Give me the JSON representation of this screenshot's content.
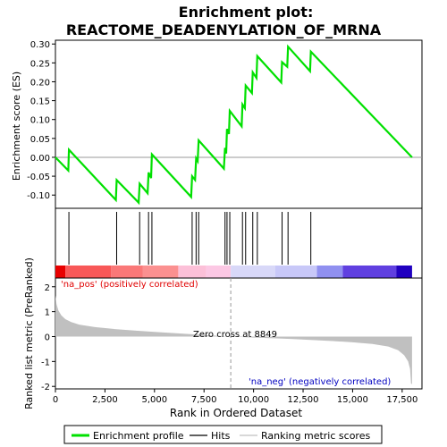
{
  "chart_data": {
    "type": "line",
    "title_line1": "Enrichment plot:",
    "title_line2": "REACTOME_DEADENYLATION_OF_MRNA",
    "es_panel": {
      "ylabel": "Enrichment score (ES)",
      "ylim": [
        -0.135,
        0.31
      ],
      "yticks": [
        -0.1,
        -0.05,
        0.0,
        0.05,
        0.1,
        0.15,
        0.2,
        0.25,
        0.3
      ],
      "ytick_labels": [
        "-0.10",
        "-0.05",
        "0.00",
        "0.05",
        "0.10",
        "0.15",
        "0.20",
        "0.25",
        "0.30"
      ],
      "line_color": "#00e000",
      "points": [
        [
          0,
          0.0
        ],
        [
          650,
          -0.035
        ],
        [
          680,
          0.02
        ],
        [
          3050,
          -0.113
        ],
        [
          3090,
          -0.06
        ],
        [
          4200,
          -0.12
        ],
        [
          4250,
          -0.07
        ],
        [
          4650,
          -0.095
        ],
        [
          4700,
          -0.04
        ],
        [
          4830,
          -0.055
        ],
        [
          4870,
          0.008
        ],
        [
          6850,
          -0.105
        ],
        [
          6900,
          -0.05
        ],
        [
          7050,
          -0.06
        ],
        [
          7100,
          -0.003
        ],
        [
          7180,
          -0.01
        ],
        [
          7230,
          0.045
        ],
        [
          8500,
          -0.03
        ],
        [
          8560,
          0.025
        ],
        [
          8620,
          0.01
        ],
        [
          8660,
          0.075
        ],
        [
          8760,
          0.062
        ],
        [
          8800,
          0.123
        ],
        [
          9400,
          0.082
        ],
        [
          9440,
          0.14
        ],
        [
          9560,
          0.13
        ],
        [
          9600,
          0.19
        ],
        [
          9920,
          0.17
        ],
        [
          9960,
          0.225
        ],
        [
          10150,
          0.21
        ],
        [
          10190,
          0.268
        ],
        [
          11400,
          0.198
        ],
        [
          11440,
          0.252
        ],
        [
          11700,
          0.24
        ],
        [
          11740,
          0.293
        ],
        [
          12850,
          0.228
        ],
        [
          12890,
          0.28
        ],
        [
          18000,
          0.0
        ]
      ]
    },
    "hits": [
      680,
      3090,
      4250,
      4700,
      4870,
      6900,
      7100,
      7230,
      8560,
      8660,
      8800,
      9440,
      9600,
      9960,
      10190,
      11440,
      11740,
      12890
    ],
    "color_bar": {
      "segments": [
        {
          "x0": 0,
          "x1": 500,
          "color": "#e80000"
        },
        {
          "x0": 500,
          "x1": 2800,
          "color": "#f85858"
        },
        {
          "x0": 2800,
          "x1": 4400,
          "color": "#fa7878"
        },
        {
          "x0": 4400,
          "x1": 6200,
          "color": "#fb9090"
        },
        {
          "x0": 6200,
          "x1": 7600,
          "color": "#fcc0d8"
        },
        {
          "x0": 7600,
          "x1": 8849,
          "color": "#fcc8e4"
        },
        {
          "x0": 8849,
          "x1": 11100,
          "color": "#d8d8f8"
        },
        {
          "x0": 11100,
          "x1": 13200,
          "color": "#c8c8f8"
        },
        {
          "x0": 13200,
          "x1": 14500,
          "color": "#9090f0"
        },
        {
          "x0": 14500,
          "x1": 17200,
          "color": "#6040e0"
        },
        {
          "x0": 17200,
          "x1": 18000,
          "color": "#2000c0"
        }
      ]
    },
    "metric_panel": {
      "ylabel": "Ranked list metric (PreRanked)",
      "ylim": [
        -2.1,
        2.35
      ],
      "yticks": [
        -2,
        -1,
        0,
        1,
        2
      ],
      "ytick_labels": [
        "-2",
        "-1",
        "0",
        "1",
        "2"
      ],
      "fill_color": "#c0c0c0",
      "points": [
        [
          0,
          1.65
        ],
        [
          60,
          1.3
        ],
        [
          150,
          1.05
        ],
        [
          300,
          0.85
        ],
        [
          500,
          0.7
        ],
        [
          800,
          0.58
        ],
        [
          1200,
          0.48
        ],
        [
          2000,
          0.38
        ],
        [
          3000,
          0.3
        ],
        [
          4000,
          0.24
        ],
        [
          5000,
          0.19
        ],
        [
          6000,
          0.14
        ],
        [
          7000,
          0.09
        ],
        [
          8000,
          0.04
        ],
        [
          8849,
          0.0
        ],
        [
          10000,
          -0.04
        ],
        [
          11000,
          -0.07
        ],
        [
          12000,
          -0.1
        ],
        [
          13000,
          -0.14
        ],
        [
          14000,
          -0.18
        ],
        [
          15000,
          -0.23
        ],
        [
          16000,
          -0.3
        ],
        [
          16800,
          -0.4
        ],
        [
          17300,
          -0.55
        ],
        [
          17600,
          -0.75
        ],
        [
          17800,
          -1.0
        ],
        [
          17900,
          -1.3
        ],
        [
          17950,
          -1.9
        ],
        [
          18000,
          -1.9
        ]
      ],
      "zero_cross_label": "Zero cross at 8849",
      "zero_cross_x": 8849,
      "pos_label": "'na_pos' (positively correlated)",
      "neg_label": "'na_neg' (negatively correlated)"
    },
    "xaxis": {
      "xlabel": "Rank in Ordered Dataset",
      "xlim": [
        0,
        18500
      ],
      "xticks": [
        0,
        2500,
        5000,
        7500,
        10000,
        12500,
        15000,
        17500
      ],
      "xtick_labels": [
        "0",
        "2,500",
        "5,000",
        "7,500",
        "10,000",
        "12,500",
        "15,000",
        "17,500"
      ]
    },
    "legend": {
      "items": [
        {
          "label": "Enrichment profile",
          "color": "#00e000",
          "kind": "thick"
        },
        {
          "label": "Hits",
          "color": "#000000",
          "kind": "thin"
        },
        {
          "label": "Ranking metric scores",
          "color": "#c0c0c0",
          "kind": "thin"
        }
      ]
    }
  }
}
